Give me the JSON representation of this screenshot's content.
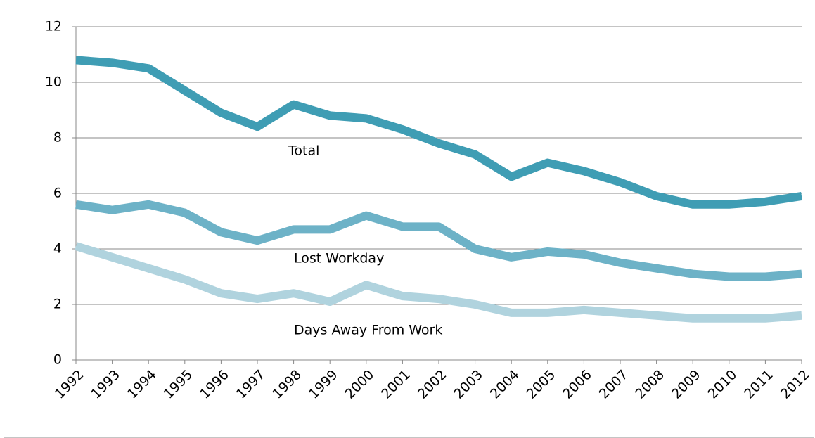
{
  "chart_data": {
    "type": "line",
    "categories": [
      "1992",
      "1993",
      "1994",
      "1995",
      "1996",
      "1997",
      "1998",
      "1999",
      "2000",
      "2001",
      "2002",
      "2003",
      "2004",
      "2005",
      "2006",
      "2007",
      "2008",
      "2009",
      "2010",
      "2011",
      "2012"
    ],
    "series": [
      {
        "name": "Total",
        "color": "#3f9db4",
        "values": [
          10.8,
          10.7,
          10.5,
          9.7,
          8.9,
          8.4,
          9.2,
          8.8,
          8.7,
          8.3,
          7.8,
          7.4,
          6.6,
          7.1,
          6.8,
          6.4,
          5.9,
          5.6,
          5.6,
          5.7,
          5.9
        ]
      },
      {
        "name": "Lost Workday",
        "color": "#6db2c7",
        "values": [
          5.6,
          5.4,
          5.6,
          5.3,
          4.6,
          4.3,
          4.7,
          4.7,
          5.2,
          4.8,
          4.8,
          4.0,
          3.7,
          3.9,
          3.8,
          3.5,
          3.3,
          3.1,
          3.0,
          3.0,
          3.1
        ]
      },
      {
        "name": "Days Away From Work",
        "color": "#b0d3de",
        "values": [
          4.1,
          3.7,
          3.3,
          2.9,
          2.4,
          2.2,
          2.4,
          2.1,
          2.7,
          2.3,
          2.2,
          2.0,
          1.7,
          1.7,
          1.8,
          1.7,
          1.6,
          1.5,
          1.5,
          1.5,
          1.6
        ]
      }
    ],
    "ylim": [
      0,
      12
    ],
    "yticks": [
      0,
      2,
      4,
      6,
      8,
      10,
      12
    ],
    "grid": true
  }
}
